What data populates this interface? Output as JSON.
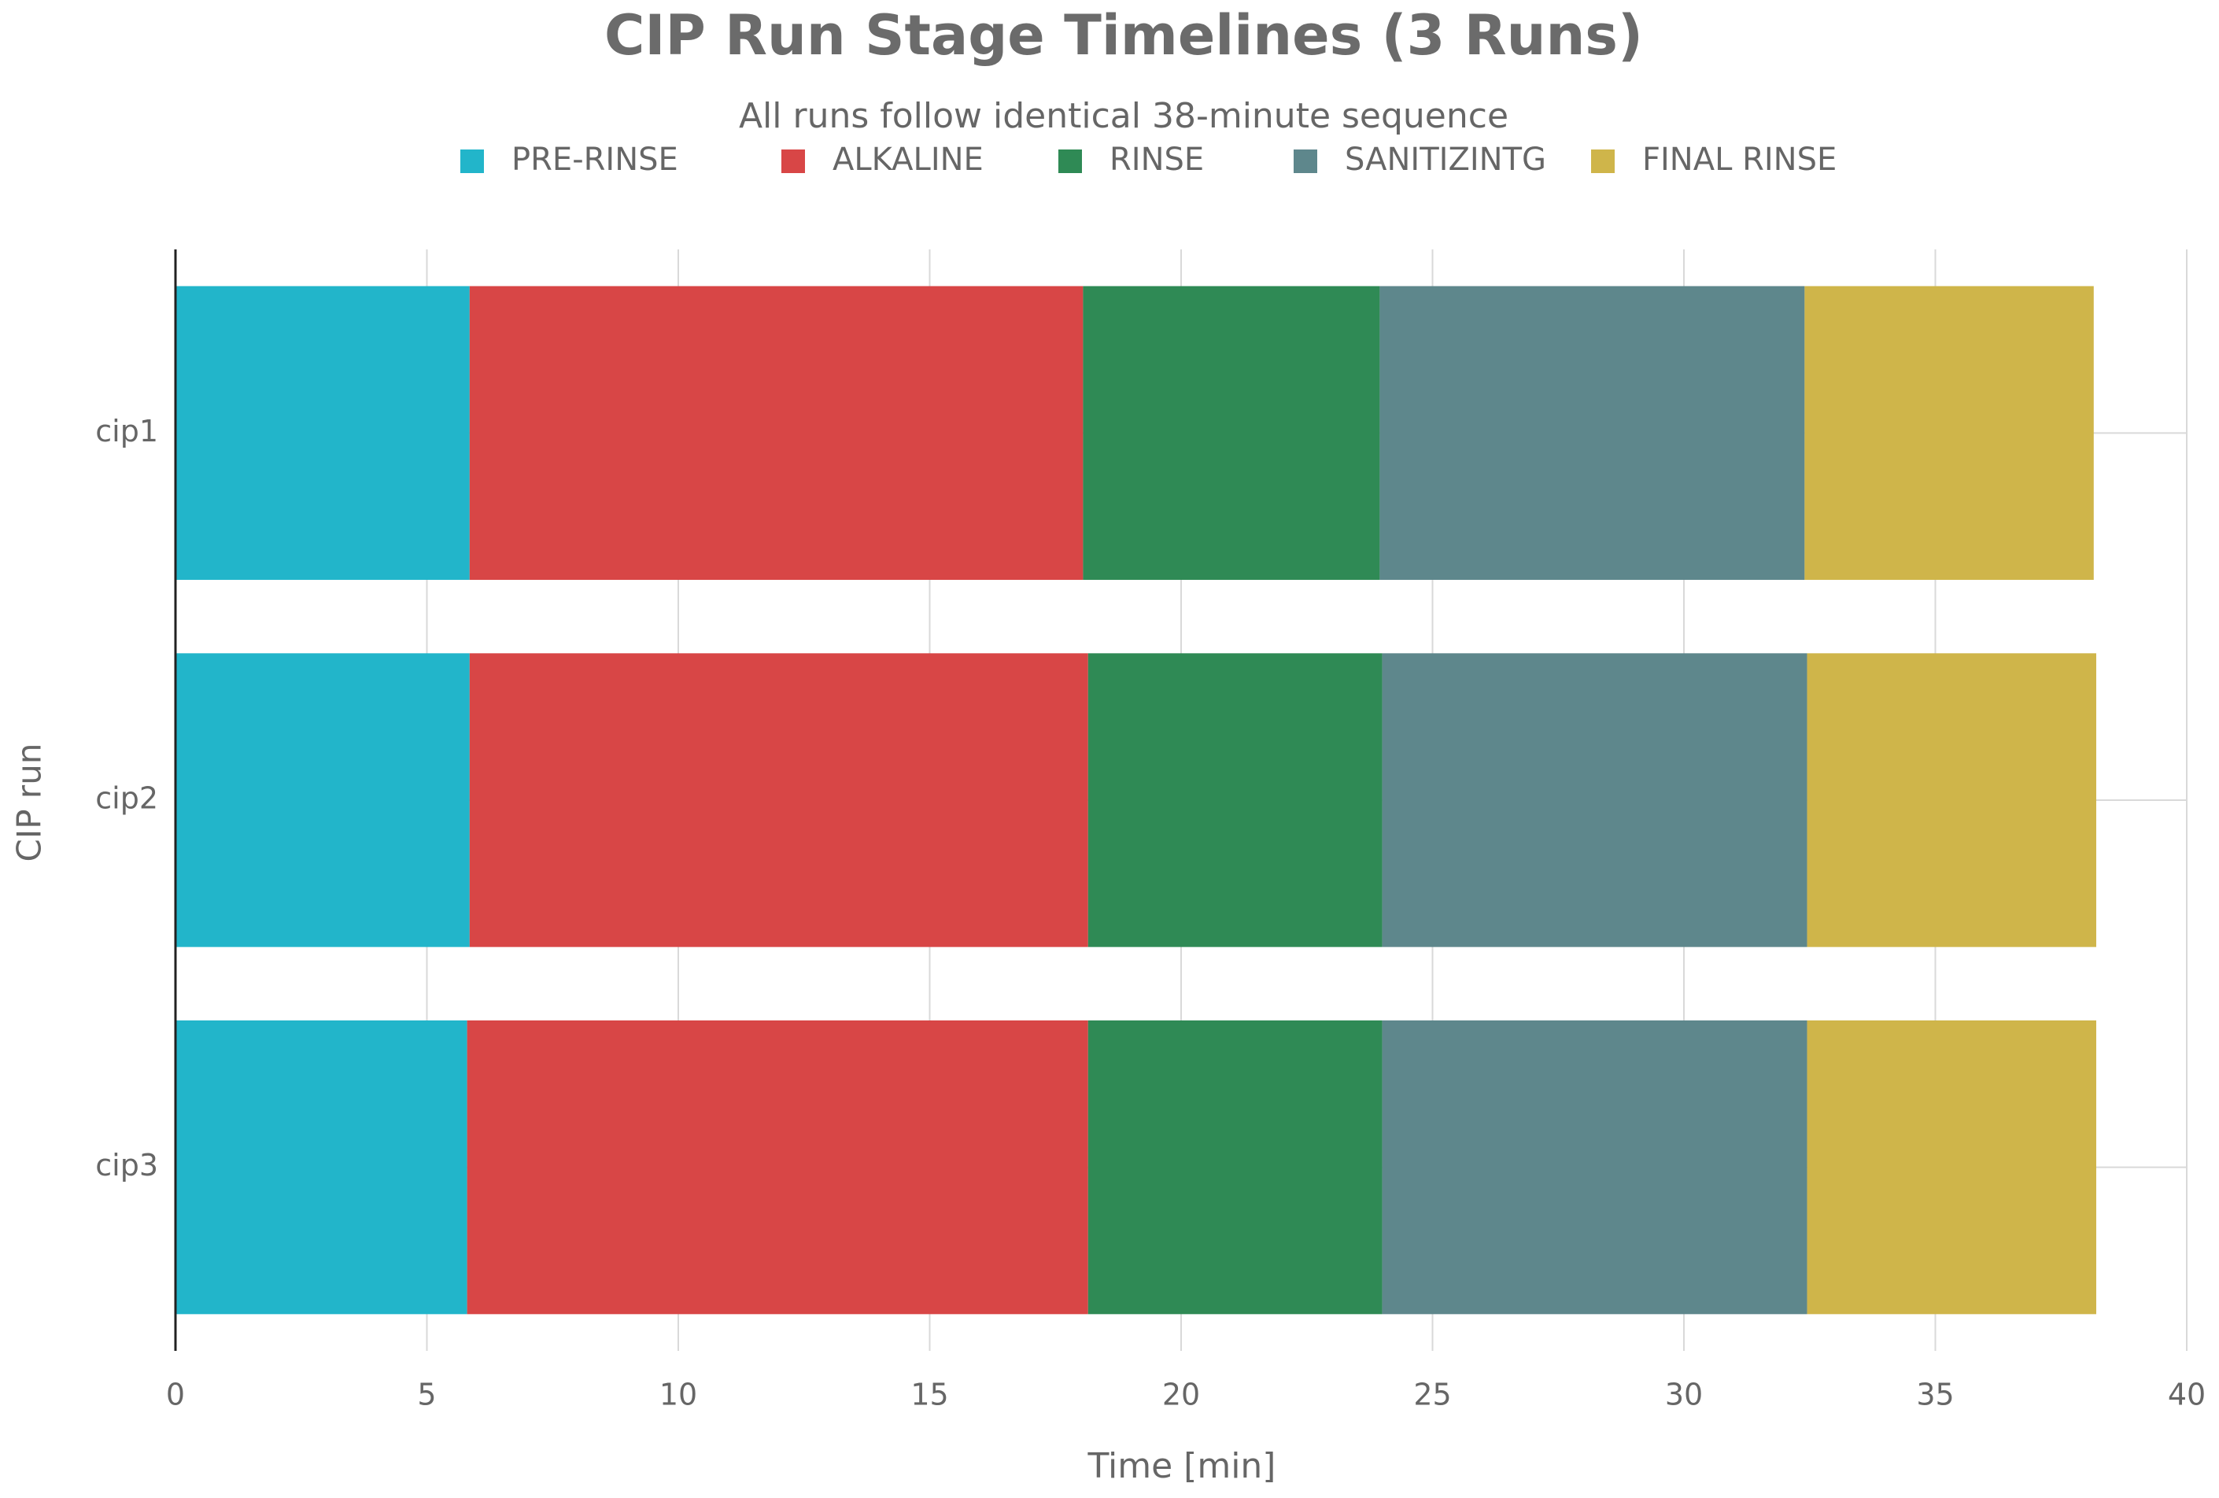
{
  "chart_data": {
    "type": "stacked-barh",
    "title": "CIP Run Stage Timelines (3 Runs)",
    "subtitle": "All runs follow identical 38-minute sequence",
    "x_label": "Time [min]",
    "y_label": "CIP run",
    "categories": [
      "cip1",
      "cip2",
      "cip3"
    ],
    "series": [
      {
        "name": "PRE-RINSE",
        "color": "#22b5ca",
        "values": [
          5.85,
          5.85,
          5.8
        ]
      },
      {
        "name": "ALKALINE",
        "color": "#d84646",
        "values": [
          12.2,
          12.3,
          12.35
        ]
      },
      {
        "name": "RINSE",
        "color": "#2f8a55",
        "values": [
          5.9,
          5.85,
          5.85
        ]
      },
      {
        "name": "SANITIZINTG",
        "color": "#5e878c",
        "values": [
          8.45,
          8.45,
          8.45
        ]
      },
      {
        "name": "FINAL RINSE",
        "color": "#cfb54a",
        "values": [
          5.75,
          5.75,
          5.75
        ]
      }
    ],
    "xlim": [
      0,
      40
    ],
    "xticks": [
      0,
      5,
      10,
      15,
      20,
      25,
      30,
      35,
      40
    ],
    "grid": true
  }
}
